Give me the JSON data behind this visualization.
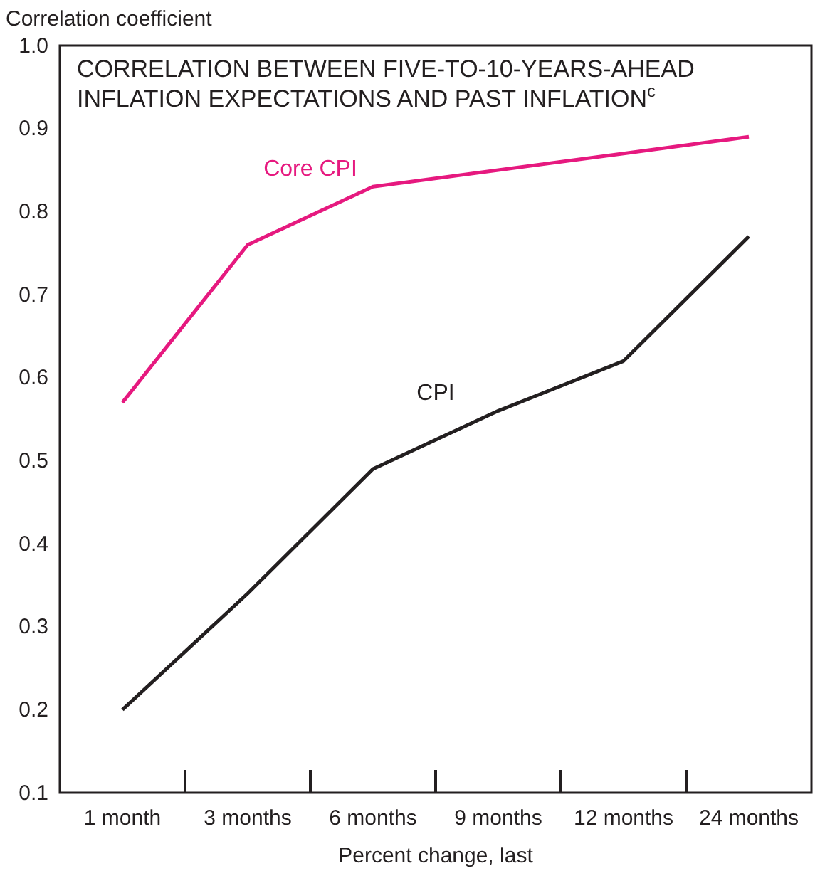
{
  "chart_data": {
    "type": "line",
    "title": "CORRELATION BETWEEN FIVE-TO-10-YEARS-AHEAD INFLATION EXPECTATIONS AND PAST INFLATION$^{c}$",
    "xlabel": "Percent change, last",
    "ylabel": "Correlation coefficient",
    "categories": [
      "1 month",
      "3 months",
      "6 months",
      "9 months",
      "12 months",
      "24 months"
    ],
    "series": [
      {
        "name": "Core CPI",
        "color": "#e6197f",
        "values": [
          0.57,
          0.76,
          0.83,
          0.85,
          0.87,
          0.89
        ]
      },
      {
        "name": "CPI",
        "color": "#231f20",
        "values": [
          0.2,
          0.34,
          0.49,
          0.56,
          0.62,
          0.77
        ]
      }
    ],
    "ylim": [
      0.1,
      1.0
    ],
    "yticks": [
      0.1,
      0.2,
      0.3,
      0.4,
      0.5,
      0.6,
      0.7,
      0.8,
      0.9,
      {
        "value": 1.0,
        "label": "1.0"
      }
    ],
    "grid": false,
    "legend": false,
    "marker": "none",
    "line_style": "solid"
  }
}
